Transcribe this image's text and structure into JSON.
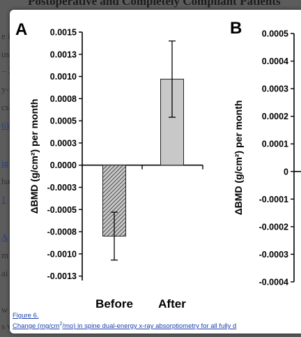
{
  "background": {
    "heading": "Postoperative and Completely Compliant Patients",
    "fragments": [
      "e i",
      "us",
      "– 2",
      "y-",
      "cs",
      "6)",
      "ig",
      "ha",
      "1",
      "A",
      "m",
      "ai",
      "w",
      "s v"
    ]
  },
  "figure": {
    "caption_label": "Figure 6.",
    "caption_text_prefix": "Change (mg/cm",
    "caption_sup": "2",
    "caption_text_suffix": "/mo) in spine dual-energy x-ray absorptiometry for all fully d"
  },
  "chart_data": [
    {
      "panel": "A",
      "type": "bar",
      "categories": [
        "Before",
        "After"
      ],
      "values": [
        -0.0008,
        0.00097
      ],
      "errors": [
        0.00027,
        0.00043
      ],
      "ylabel": "ΔBMD (g/cm²) per month",
      "ylim": [
        -0.0013,
        0.0015
      ],
      "yticks": [
        "0.0015",
        "0.0013",
        "0.0010",
        "0.0008",
        "0.0005",
        "0.0003",
        "0.0000",
        "-0.0003",
        "-0.0005",
        "-0.0008",
        "-0.0010",
        "-0.0013"
      ],
      "ytick_values": [
        0.0015,
        0.00125,
        0.001,
        0.00075,
        0.0005,
        0.00025,
        0,
        -0.00025,
        -0.0005,
        -0.00075,
        -0.001,
        -0.00125
      ],
      "bar_styles": [
        "hatched",
        "lightgray"
      ]
    },
    {
      "panel": "B",
      "type": "bar",
      "categories": [],
      "values": [],
      "ylabel": "ΔBMD (g/cm²) per month",
      "ylim": [
        -0.0004,
        0.0005
      ],
      "yticks": [
        "0.0005",
        "0.0004",
        "0.0003",
        "0.0002",
        "0.0001",
        "0",
        "-0.0001",
        "-0.0002",
        "-0.0003",
        "-0.0004"
      ],
      "ytick_values": [
        0.0005,
        0.0004,
        0.0003,
        0.0002,
        0.0001,
        0,
        -0.0001,
        -0.0002,
        -0.0003,
        -0.0004
      ]
    }
  ]
}
